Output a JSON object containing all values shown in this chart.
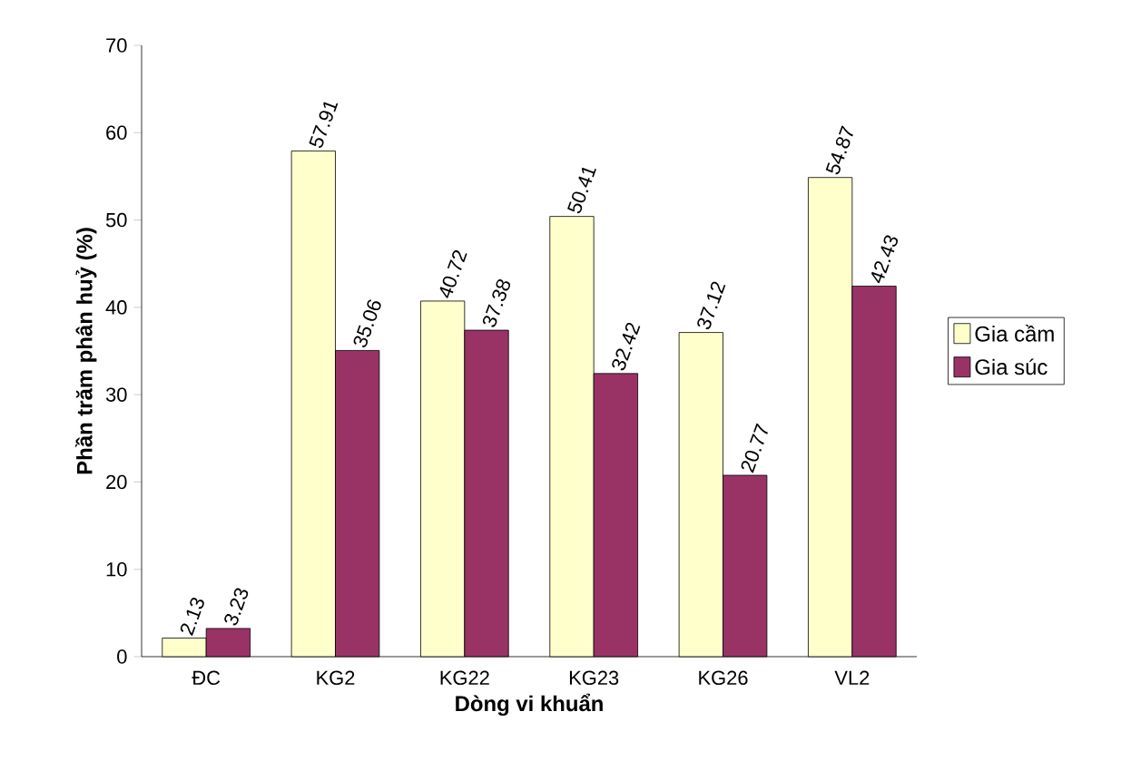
{
  "chart_data": {
    "type": "bar",
    "xlabel": "Dòng vi khuẩn",
    "ylabel": "Phần trăm phân huỷ (%)",
    "categories": [
      "ĐC",
      "KG2",
      "KG22",
      "KG23",
      "KG26",
      "VL2"
    ],
    "series": [
      {
        "name": "Gia cầm",
        "color": "#ffffcc",
        "values": [
          2.13,
          57.91,
          40.72,
          50.41,
          37.12,
          54.87
        ]
      },
      {
        "name": "Gia súc",
        "color": "#993366",
        "values": [
          3.23,
          35.06,
          37.38,
          32.42,
          20.77,
          42.43
        ]
      }
    ],
    "ylim": [
      0,
      70
    ],
    "yticks": [
      0,
      10,
      20,
      30,
      40,
      50,
      60,
      70
    ],
    "data_labels": true,
    "legend": "right",
    "grid": false
  }
}
